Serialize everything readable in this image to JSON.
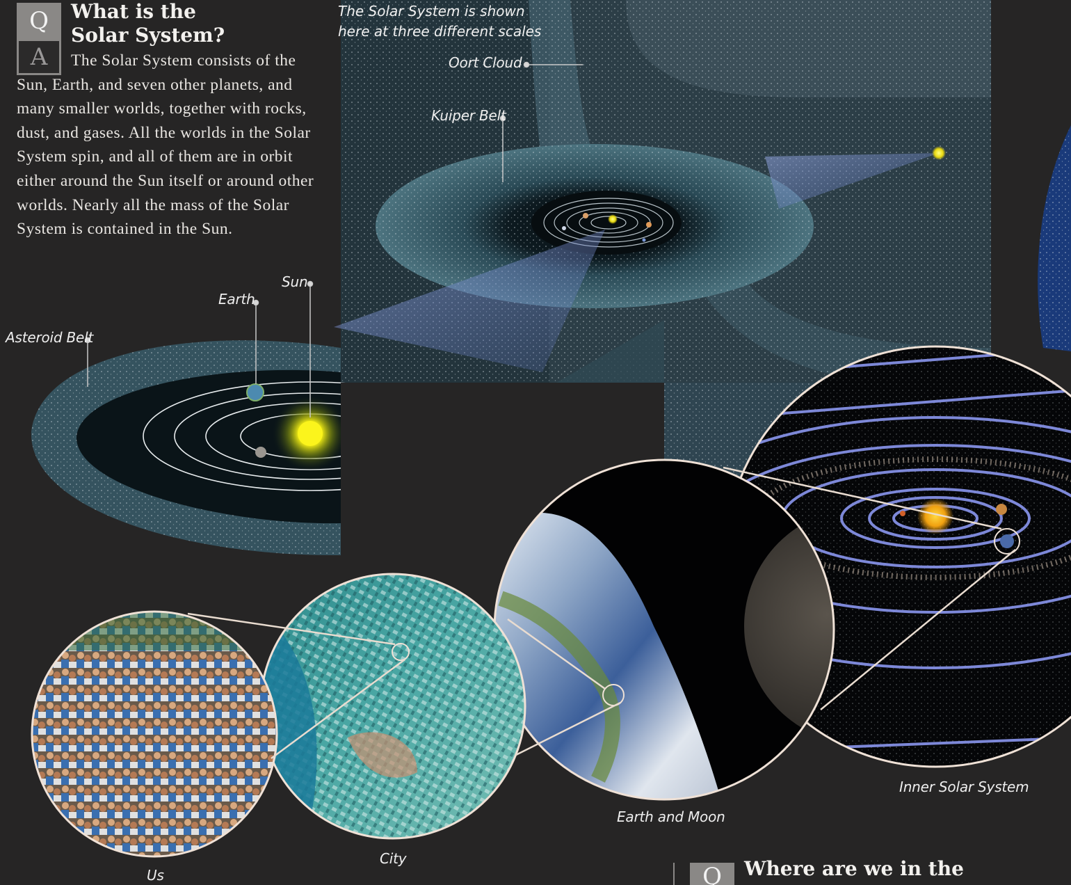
{
  "question": {
    "q_glyph": "Q",
    "a_glyph": "A",
    "title_line1": "What is the",
    "title_line2": "Solar System?",
    "answer": "The Solar System consists of the Sun, Earth, and seven other planets, and many smaller worlds, together with rocks, dust, and gases. All the worlds in the Solar System spin, and all of them are in orbit either around the Sun itself or around other worlds. Nearly all the mass of the Solar System is contained in the Sun."
  },
  "caption": {
    "line1": "The Solar System is shown",
    "line2": "here at three different scales"
  },
  "labels": {
    "oort_cloud": "Oort Cloud",
    "kuiper_belt": "Kuiper Belt",
    "sun": "Sun",
    "earth": "Earth",
    "asteroid_belt": "Asteroid Belt",
    "inner_solar_system": "Inner Solar System",
    "earth_and_moon": "Earth and Moon",
    "city": "City",
    "us": "Us"
  },
  "next_question": {
    "q_glyph": "Q",
    "title": "Where are we in the"
  },
  "colors": {
    "background": "#262525",
    "q_box": "#8a8886",
    "label_text": "#eeeeee",
    "sun": "#f4f017",
    "orbit": "#7d88d8"
  }
}
